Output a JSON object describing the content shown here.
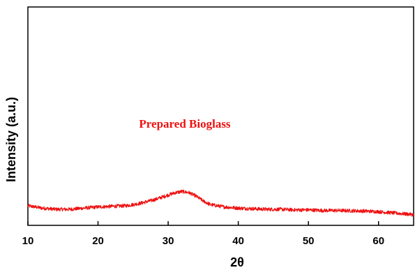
{
  "chart_data": {
    "type": "line",
    "xlabel": "2θ",
    "ylabel": "Intensity (a.u.)",
    "xlim": [
      10,
      65
    ],
    "xticks": [
      "10",
      "20",
      "30",
      "40",
      "50",
      "60"
    ],
    "y_tick_labels": false,
    "grid": false,
    "annotation": "Prepared Bioglass",
    "series": [
      {
        "color": "#ee1111",
        "x": [
          10,
          12,
          14,
          16,
          18,
          20,
          22,
          24,
          26,
          28,
          30,
          31,
          32,
          33,
          34,
          35,
          36,
          38,
          40,
          42,
          44,
          46,
          48,
          50,
          52,
          54,
          56,
          58,
          60,
          62,
          64,
          65
        ],
        "y": [
          0.03,
          0.01,
          0.0,
          0.0,
          0.01,
          0.02,
          0.025,
          0.03,
          0.05,
          0.08,
          0.12,
          0.14,
          0.15,
          0.14,
          0.11,
          0.07,
          0.04,
          0.02,
          0.01,
          0.005,
          0.0,
          0.0,
          -0.005,
          -0.005,
          -0.01,
          -0.01,
          -0.012,
          -0.015,
          -0.02,
          -0.03,
          -0.04,
          -0.045
        ]
      }
    ]
  }
}
